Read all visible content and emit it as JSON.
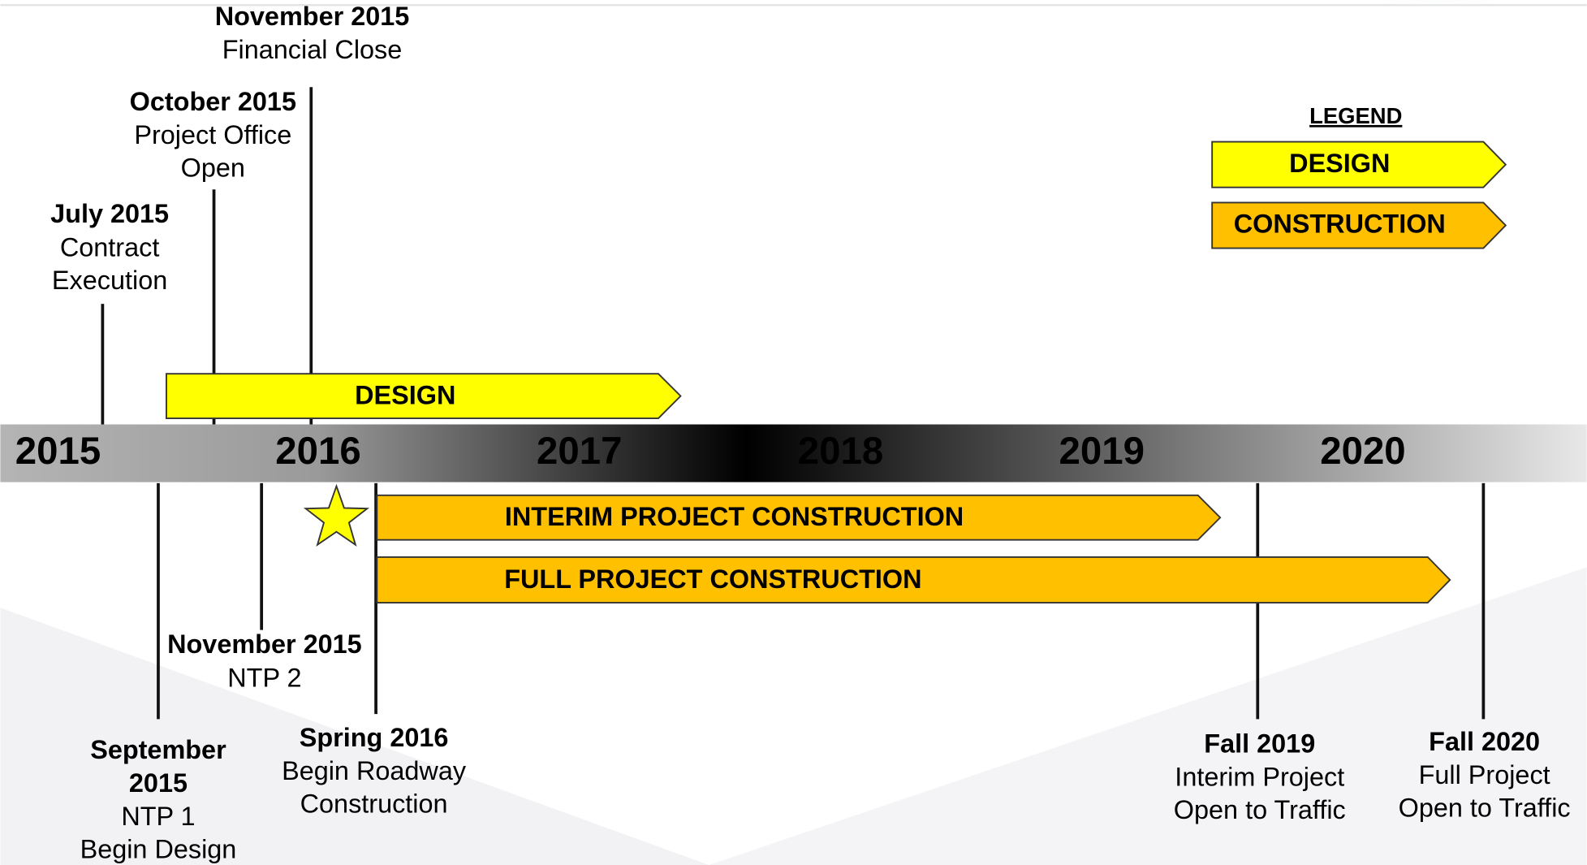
{
  "timeline": {
    "years": [
      "2015",
      "2016",
      "2017",
      "2018",
      "2019",
      "2020"
    ]
  },
  "bars": [
    {
      "label": "DESIGN"
    },
    {
      "label": "INTERIM PROJECT CONSTRUCTION"
    },
    {
      "label": "FULL PROJECT CONSTRUCTION"
    }
  ],
  "legend": {
    "title": "LEGEND",
    "items": [
      "DESIGN",
      "CONSTRUCTION"
    ]
  },
  "milestones": [
    {
      "title": [
        "July 2015"
      ],
      "lines": [
        "Contract",
        "Execution"
      ]
    },
    {
      "title": [
        "October 2015"
      ],
      "lines": [
        "Project Office",
        "Open"
      ]
    },
    {
      "title": [
        "November 2015"
      ],
      "lines": [
        "Financial Close"
      ]
    },
    {
      "title": [
        "September",
        "2015"
      ],
      "lines": [
        "NTP 1",
        "Begin Design"
      ]
    },
    {
      "title": [
        "November 2015"
      ],
      "lines": [
        "NTP 2"
      ]
    },
    {
      "title": [
        "Spring 2016"
      ],
      "lines": [
        "Begin Roadway",
        "Construction"
      ]
    },
    {
      "title": [
        "Fall 2019"
      ],
      "lines": [
        "Interim Project",
        "Open to Traffic"
      ]
    },
    {
      "title": [
        "Fall 2020"
      ],
      "lines": [
        "Full Project",
        "Open to Traffic"
      ]
    }
  ]
}
